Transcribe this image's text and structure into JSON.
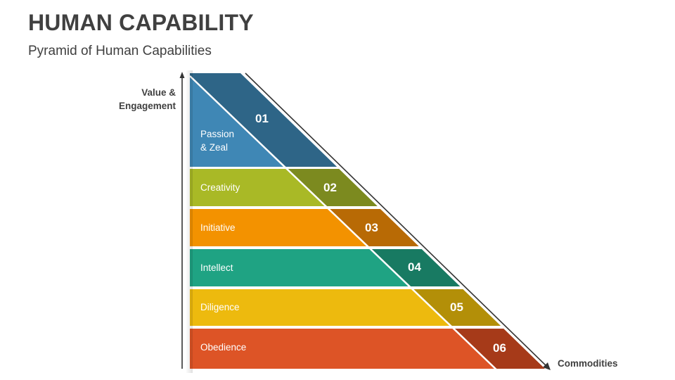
{
  "header": {
    "title": "HUMAN CAPABILITY",
    "subtitle": "Pyramid of Human Capabilities"
  },
  "axes": {
    "y_label_line1": "Value &",
    "y_label_line2": "Engagement",
    "x_label": "Commodities"
  },
  "levels": [
    {
      "number": "01",
      "label_line1": "Passion",
      "label_line2": "& Zeal",
      "color": "#3F87B5",
      "accent": "#2E6587"
    },
    {
      "number": "02",
      "label_line1": "Creativity",
      "label_line2": "",
      "color": "#A9B926",
      "accent": "#7C8A1F"
    },
    {
      "number": "03",
      "label_line1": "Initiative",
      "label_line2": "",
      "color": "#F39200",
      "accent": "#B86A05"
    },
    {
      "number": "04",
      "label_line1": "Intellect",
      "label_line2": "",
      "color": "#1FA383",
      "accent": "#187A62"
    },
    {
      "number": "05",
      "label_line1": "Diligence",
      "label_line2": "",
      "color": "#EDBA0E",
      "accent": "#B38F08"
    },
    {
      "number": "06",
      "label_line1": "Obedience",
      "label_line2": "",
      "color": "#DD5426",
      "accent": "#A63A19"
    }
  ]
}
